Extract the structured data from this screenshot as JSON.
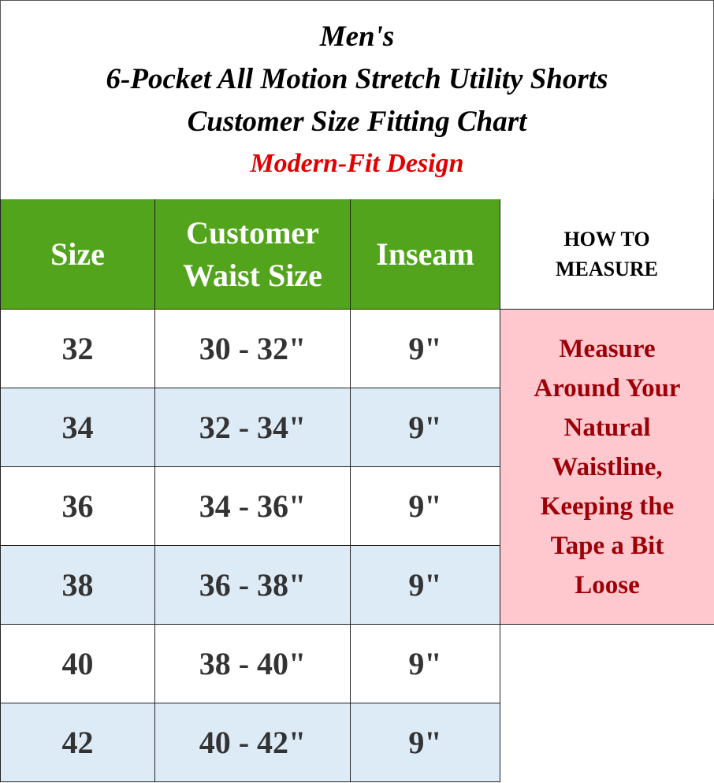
{
  "title": {
    "line1": "Men's",
    "line2": "6-Pocket All Motion Stretch Utility Shorts",
    "line3": "Customer Size Fitting Chart",
    "subtitle": "Modern-Fit Design"
  },
  "headers": {
    "size": "Size",
    "waist_line1": "Customer",
    "waist_line2": "Waist Size",
    "inseam": "Inseam",
    "how_line1": "HOW TO",
    "how_line2": "MEASURE"
  },
  "rows": [
    {
      "size": "32",
      "waist": "30 - 32\"",
      "inseam": "9\""
    },
    {
      "size": "34",
      "waist": "32 - 34\"",
      "inseam": "9\""
    },
    {
      "size": "36",
      "waist": "34 - 36\"",
      "inseam": "9\""
    },
    {
      "size": "38",
      "waist": "36 - 38\"",
      "inseam": "9\""
    },
    {
      "size": "40",
      "waist": "38 - 40\"",
      "inseam": "9\""
    },
    {
      "size": "42",
      "waist": "40 - 42\"",
      "inseam": "9\""
    }
  ],
  "instructions": "Measure Around Your Natural Waistline, Keeping the Tape a Bit Loose",
  "colors": {
    "header_green": "#52a41c",
    "alt_row": "#ddebf7",
    "note_bg": "#ffc7ce",
    "note_text": "#9c0006",
    "subtitle": "#e00000"
  }
}
